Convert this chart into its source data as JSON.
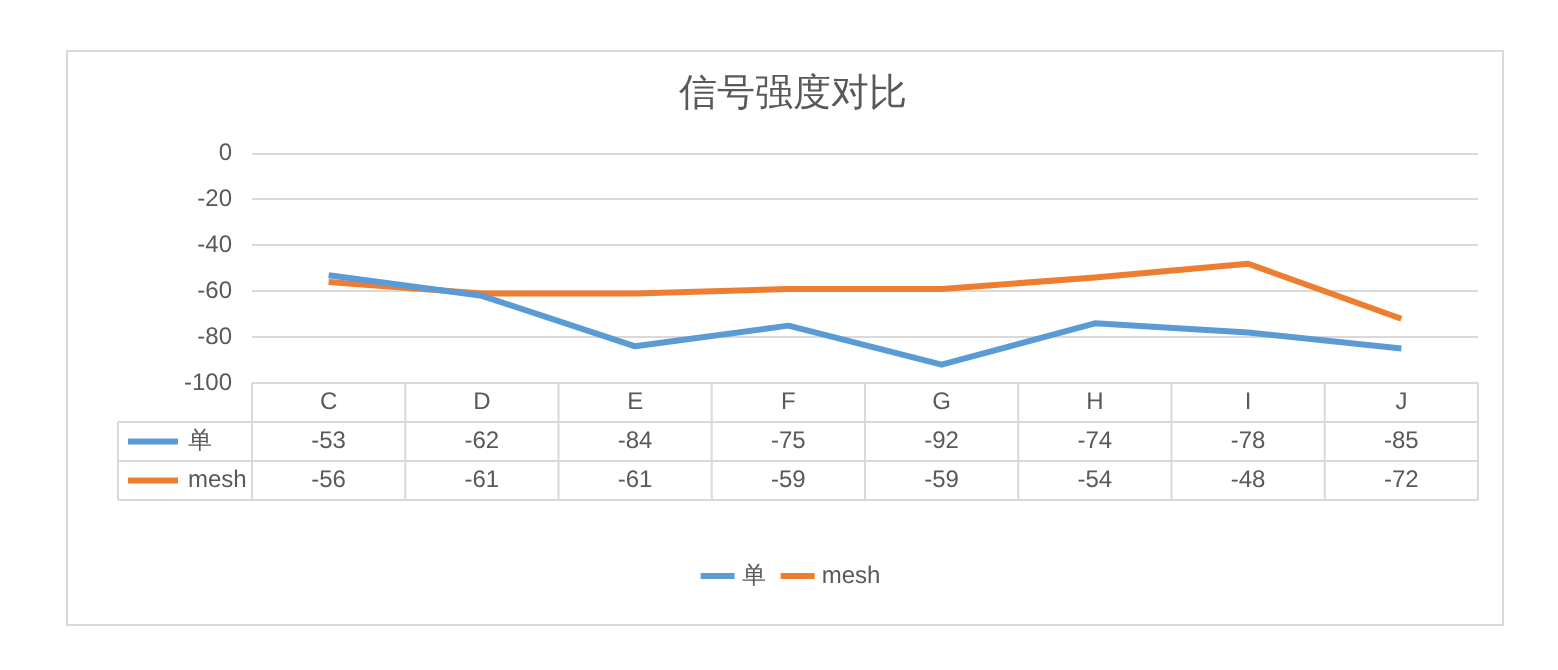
{
  "chart_data": {
    "type": "line",
    "title": "信号强度对比",
    "categories": [
      "C",
      "D",
      "E",
      "F",
      "G",
      "H",
      "I",
      "J"
    ],
    "series": [
      {
        "name": "单",
        "color": "#5b9bd5",
        "values": [
          -53,
          -62,
          -84,
          -75,
          -92,
          -74,
          -78,
          -85
        ]
      },
      {
        "name": "mesh",
        "color": "#ed7d31",
        "values": [
          -56,
          -61,
          -61,
          -59,
          -59,
          -54,
          -48,
          -72
        ]
      }
    ],
    "ylim": [
      -100,
      0
    ],
    "yticks": [
      -100,
      -80,
      -60,
      -40,
      -20,
      0
    ],
    "grid": "y",
    "legend": "bottom",
    "data_labels": true,
    "marker": "none",
    "line_style": "solid"
  }
}
